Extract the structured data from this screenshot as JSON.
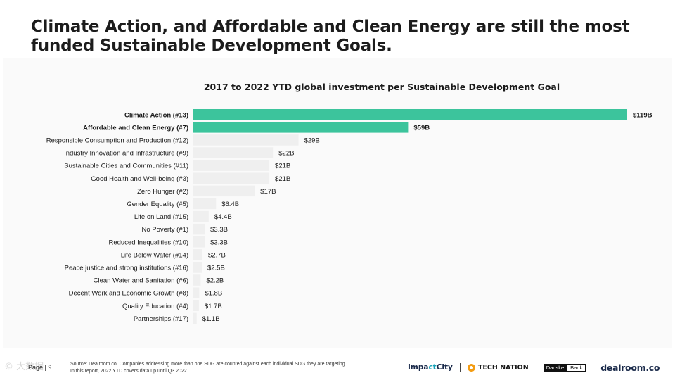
{
  "headline": "Climate Action, and Affordable and Clean Energy are still the most funded Sustainable Development Goals.",
  "chart_data": {
    "type": "bar",
    "orientation": "horizontal",
    "title": "2017 to 2022 YTD global investment per Sustainable Development Goal",
    "categories": [
      "Climate Action (#13)",
      "Affordable and Clean Energy (#7)",
      "Responsible Consumption and Production (#12)",
      "Industry Innovation and Infrastructure (#9)",
      "Sustainable Cities and Communities (#11)",
      "Good Health and Well-being (#3)",
      "Zero Hunger (#2)",
      "Gender Equality (#5)",
      "Life on Land (#15)",
      "No Poverty (#1)",
      "Reduced Inequalities (#10)",
      "Life Below Water (#14)",
      "Peace justice and strong institutions (#16)",
      "Clean Water and Sanitation (#6)",
      "Decent Work and Economic Growth (#8)",
      "Quality Education (#4)",
      "Partnerships (#17)"
    ],
    "values": [
      119,
      59,
      29,
      22,
      21,
      21,
      17,
      6.4,
      4.4,
      3.3,
      3.3,
      2.7,
      2.5,
      2.2,
      1.8,
      1.7,
      1.1
    ],
    "value_labels": [
      "$119B",
      "$59B",
      "$29B",
      "$22B",
      "$21B",
      "$21B",
      "$17B",
      "$6.4B",
      "$4.4B",
      "$3.3B",
      "$3.3B",
      "$2.7B",
      "$2.5B",
      "$2.2B",
      "$1.8B",
      "$1.7B",
      "$1.1B"
    ],
    "highlighted": [
      true,
      true,
      false,
      false,
      false,
      false,
      false,
      false,
      false,
      false,
      false,
      false,
      false,
      false,
      false,
      false,
      false
    ],
    "unit": "$B",
    "xlim": [
      0,
      119
    ],
    "grid": false,
    "colors": {
      "highlight": "#3cc49c",
      "default": "#efefef"
    }
  },
  "footer": {
    "page_label": "Page | 9",
    "source_line1": "Source: Dealroom.co. Companies addressing more than one SDG are counted against each individual SDG they are targeting.",
    "source_line2": "In this report, 2022 YTD covers data up until Q3 2022.",
    "watermark": "© 大数据",
    "logos": {
      "impactcity_a": "Impa",
      "impactcity_b": "ct",
      "impactcity_c": "City",
      "technation": "TECH NATION",
      "danske_a": "Danske",
      "danske_b": "Bank",
      "dealroom": "dealroom.co"
    }
  }
}
